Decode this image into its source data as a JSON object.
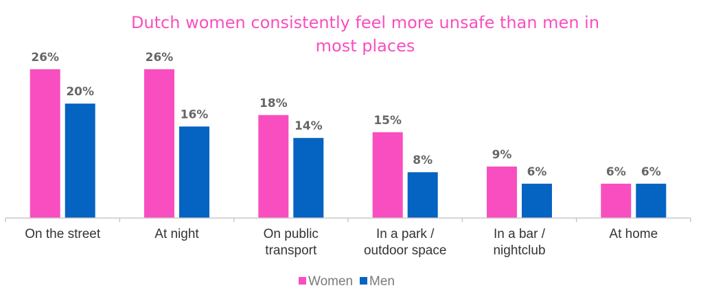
{
  "chart_data": {
    "type": "bar",
    "title_lines": [
      "Dutch women consistently feel more unsafe than men in",
      "most places"
    ],
    "category_lines": [
      [
        "On the street"
      ],
      [
        "At night"
      ],
      [
        "On public",
        "transport"
      ],
      [
        "In a park /",
        "outdoor space"
      ],
      [
        "In a bar /",
        "nightclub"
      ],
      [
        "At home"
      ]
    ],
    "series": [
      {
        "name": "Women",
        "values": [
          26,
          26,
          18,
          15,
          9,
          6
        ],
        "labels": [
          "26%",
          "26%",
          "18%",
          "15%",
          "9%",
          "6%"
        ]
      },
      {
        "name": "Men",
        "values": [
          20,
          16,
          14,
          8,
          6,
          6
        ],
        "labels": [
          "20%",
          "16%",
          "14%",
          "8%",
          "6%",
          "6%"
        ]
      }
    ],
    "xlabel": "",
    "ylabel": "",
    "ylim": [
      0,
      26
    ],
    "grid": false,
    "legend_position": "bottom"
  },
  "colors": {
    "women": "#f94ec0",
    "men": "#0563c1",
    "title": "#f94ec0",
    "axis": "#c8c8c8"
  }
}
